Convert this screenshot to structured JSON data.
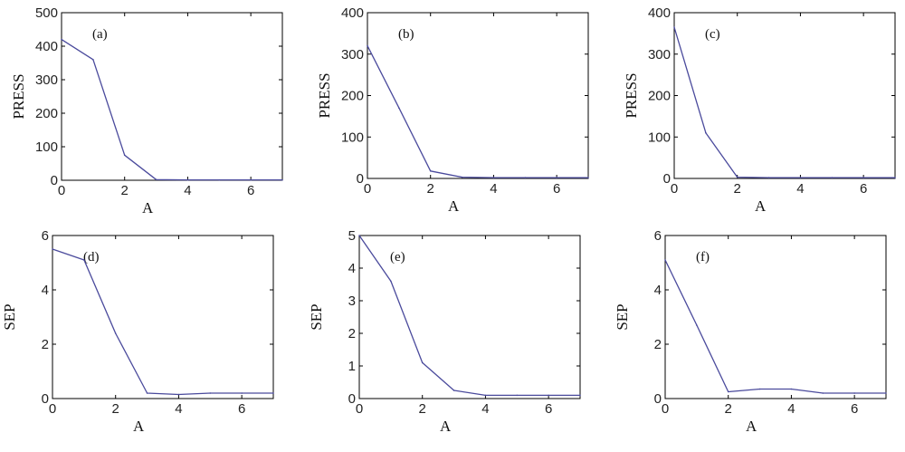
{
  "colors": {
    "line": "#4a4a9c",
    "axes": "#000000"
  },
  "chart_data": [
    {
      "type": "line",
      "panel_label": "(a)",
      "xlabel": "A",
      "ylabel": "PRESS",
      "xlim": [
        0,
        7
      ],
      "ylim": [
        0,
        500
      ],
      "xticks": [
        0,
        2,
        4,
        6
      ],
      "yticks": [
        0,
        100,
        200,
        300,
        400,
        500
      ],
      "x": [
        0,
        1,
        2,
        3,
        4,
        5,
        6,
        7
      ],
      "series": [
        {
          "values": [
            420,
            360,
            75,
            2,
            1,
            1,
            1,
            1
          ]
        }
      ]
    },
    {
      "type": "line",
      "panel_label": "(b)",
      "xlabel": "A",
      "ylabel": "PRESS",
      "xlim": [
        0,
        7
      ],
      "ylim": [
        0,
        400
      ],
      "xticks": [
        0,
        2,
        4,
        6
      ],
      "yticks": [
        0,
        100,
        200,
        300,
        400
      ],
      "x": [
        0,
        1,
        2,
        3,
        4,
        5,
        6,
        7
      ],
      "series": [
        {
          "values": [
            320,
            170,
            18,
            3,
            2,
            2,
            2,
            2
          ]
        }
      ]
    },
    {
      "type": "line",
      "panel_label": "(c)",
      "xlabel": "A",
      "ylabel": "PRESS",
      "xlim": [
        0,
        7
      ],
      "ylim": [
        0,
        400
      ],
      "xticks": [
        0,
        2,
        4,
        6
      ],
      "yticks": [
        0,
        100,
        200,
        300,
        400
      ],
      "x": [
        0,
        1,
        2,
        3,
        4,
        5,
        6,
        7
      ],
      "series": [
        {
          "values": [
            365,
            110,
            3,
            2,
            2,
            2,
            2,
            2
          ]
        }
      ]
    },
    {
      "type": "line",
      "panel_label": "(d)",
      "xlabel": "A",
      "ylabel": "SEP",
      "xlim": [
        0,
        7
      ],
      "ylim": [
        0,
        6
      ],
      "xticks": [
        0,
        2,
        4,
        6
      ],
      "yticks": [
        0,
        2,
        4,
        6
      ],
      "x": [
        0,
        1,
        2,
        3,
        4,
        5,
        6,
        7
      ],
      "series": [
        {
          "values": [
            5.5,
            5.1,
            2.4,
            0.2,
            0.15,
            0.2,
            0.2,
            0.2
          ]
        }
      ]
    },
    {
      "type": "line",
      "panel_label": "(e)",
      "xlabel": "A",
      "ylabel": "SEP",
      "xlim": [
        0,
        7
      ],
      "ylim": [
        0,
        5
      ],
      "xticks": [
        0,
        2,
        4,
        6
      ],
      "yticks": [
        0,
        1,
        2,
        3,
        4,
        5
      ],
      "x": [
        0,
        1,
        2,
        3,
        4,
        5,
        6,
        7
      ],
      "series": [
        {
          "values": [
            5.0,
            3.6,
            1.1,
            0.25,
            0.1,
            0.1,
            0.1,
            0.1
          ]
        }
      ]
    },
    {
      "type": "line",
      "panel_label": "(f)",
      "xlabel": "A",
      "ylabel": "SEP",
      "xlim": [
        0,
        7
      ],
      "ylim": [
        0,
        6
      ],
      "xticks": [
        0,
        2,
        4,
        6
      ],
      "yticks": [
        0,
        2,
        4,
        6
      ],
      "x": [
        0,
        1,
        2,
        3,
        4,
        5,
        6,
        7
      ],
      "series": [
        {
          "values": [
            5.1,
            2.7,
            0.25,
            0.35,
            0.35,
            0.2,
            0.2,
            0.2
          ]
        }
      ]
    }
  ]
}
